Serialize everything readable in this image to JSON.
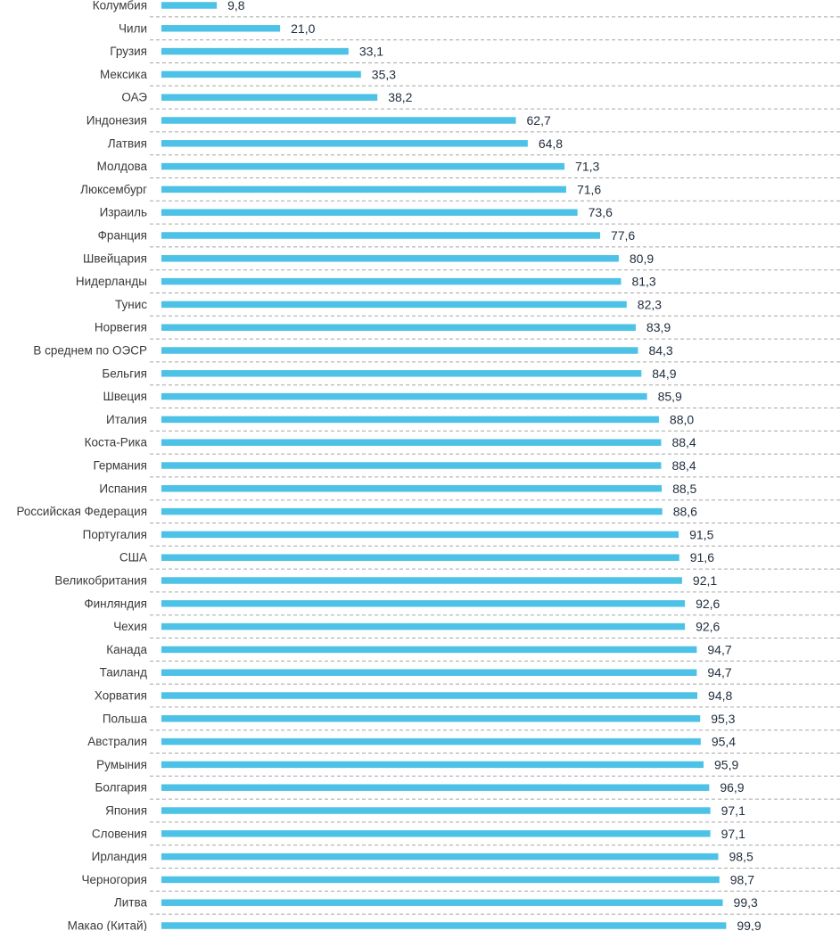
{
  "chart_data": {
    "type": "bar",
    "orientation": "horizontal",
    "title": "",
    "xlabel": "",
    "ylabel": "",
    "xlim": [
      0,
      100
    ],
    "bar_color": "#4ec2e6",
    "categories": [
      "Колумбия",
      "Чили",
      "Грузия",
      "Мексика",
      "ОАЭ",
      "Индонезия",
      "Латвия",
      "Молдова",
      "Люксембург",
      "Израиль",
      "Франция",
      "Швейцария",
      "Нидерланды",
      "Тунис",
      "Норвегия",
      "В среднем по ОЭСР",
      "Бельгия",
      "Швеция",
      "Италия",
      "Коста-Рика",
      "Германия",
      "Испания",
      "Российская Федерация",
      "Португалия",
      "США",
      "Великобритания",
      "Финляндия",
      "Чехия",
      "Канада",
      "Таиланд",
      "Хорватия",
      "Польша",
      "Австралия",
      "Румыния",
      "Болгария",
      "Япония",
      "Словения",
      "Ирландия",
      "Черногория",
      "Литва",
      "Макао (Китай)"
    ],
    "values": [
      9.8,
      21.0,
      33.1,
      35.3,
      38.2,
      62.7,
      64.8,
      71.3,
      71.6,
      73.6,
      77.6,
      80.9,
      81.3,
      82.3,
      83.9,
      84.3,
      84.9,
      85.9,
      88.0,
      88.4,
      88.4,
      88.5,
      88.6,
      91.5,
      91.6,
      92.1,
      92.6,
      92.6,
      94.7,
      94.7,
      94.8,
      95.3,
      95.4,
      95.9,
      96.9,
      97.1,
      97.1,
      98.5,
      98.7,
      99.3,
      99.9
    ],
    "value_labels": [
      "9,8",
      "21,0",
      "33,1",
      "35,3",
      "38,2",
      "62,7",
      "64,8",
      "71,3",
      "71,6",
      "73,6",
      "77,6",
      "80,9",
      "81,3",
      "82,3",
      "83,9",
      "84,3",
      "84,9",
      "85,9",
      "88,0",
      "88,4",
      "88,4",
      "88,5",
      "88,6",
      "91,5",
      "91,6",
      "92,1",
      "92,6",
      "92,6",
      "94,7",
      "94,7",
      "94,8",
      "95,3",
      "95,4",
      "95,9",
      "96,9",
      "97,1",
      "97,1",
      "98,5",
      "98,7",
      "99,3",
      "99,9"
    ]
  }
}
